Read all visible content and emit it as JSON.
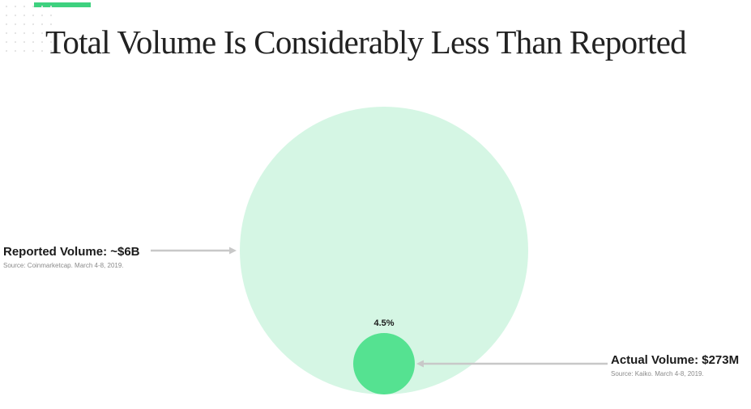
{
  "title": "Total Volume Is Considerably Less Than Reported",
  "colors": {
    "accent": "#3ed17f",
    "large_circle": "#d5f6e4",
    "small_circle": "#55e291",
    "arrow": "#c8c8c8",
    "title_text": "#222222",
    "source_text": "#8a8a8a"
  },
  "reported": {
    "label": "Reported Volume: ~$6B",
    "source": "Source: Coinmarketcap. March 4-8, 2019."
  },
  "actual": {
    "label": "Actual Volume: $273M",
    "source": "Source: Kaiko. March 4-8, 2019.",
    "percent_label": "4.5%"
  }
}
